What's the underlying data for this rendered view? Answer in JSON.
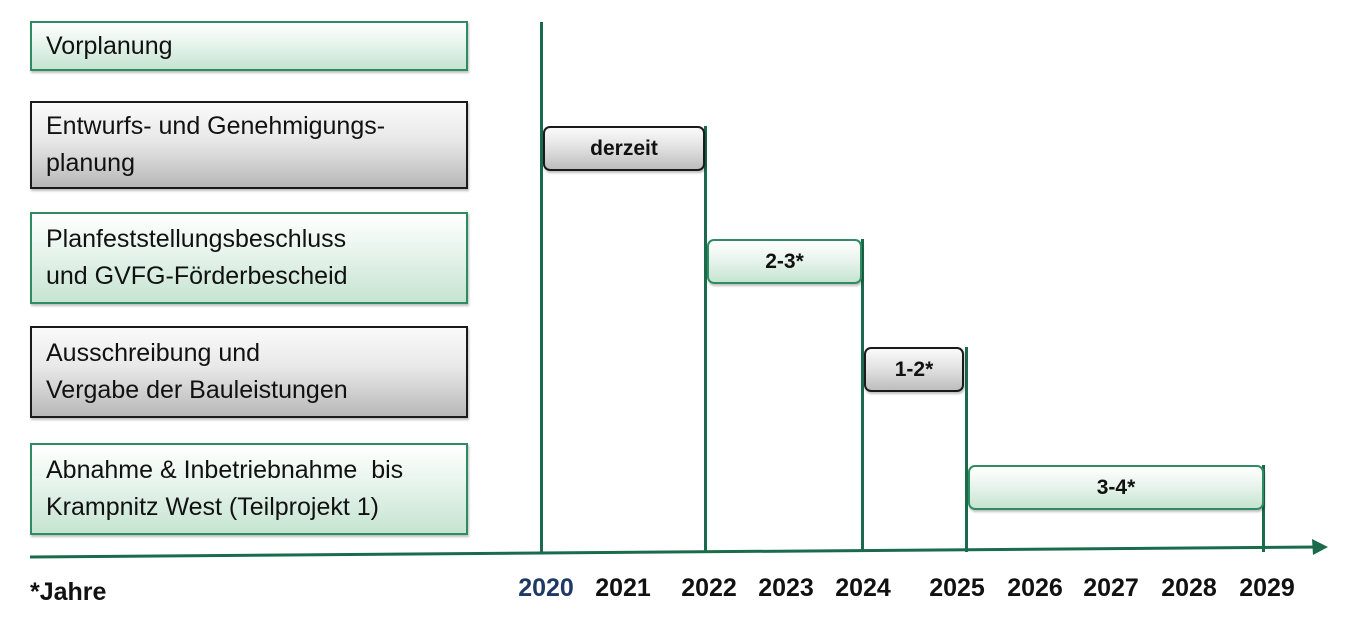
{
  "phases": [
    {
      "line1": "Vorplanung",
      "line2": ""
    },
    {
      "line1": "Entwurfs- und Genehmigungs-",
      "line2": "planung"
    },
    {
      "line1": "Planfeststellungsbeschluss",
      "line2": "und GVFG-Förderbescheid"
    },
    {
      "line1": "Ausschreibung und",
      "line2": "Vergabe der Bauleistungen"
    },
    {
      "line1": "Abnahme & Inbetriebnahme  bis",
      "line2": "Krampnitz West (Teilprojekt 1)"
    }
  ],
  "durations": [
    "derzeit",
    "2-3*",
    "1-2*",
    "3-4*"
  ],
  "years": [
    "2020",
    "2021",
    "2022",
    "2023",
    "2024",
    "2025",
    "2026",
    "2027",
    "2028",
    "2029"
  ],
  "footnote": "*Jahre",
  "colors": {
    "accent_green": "#2e8b62",
    "line_green": "#1a6b4c",
    "first_year": "#1f3864"
  }
}
